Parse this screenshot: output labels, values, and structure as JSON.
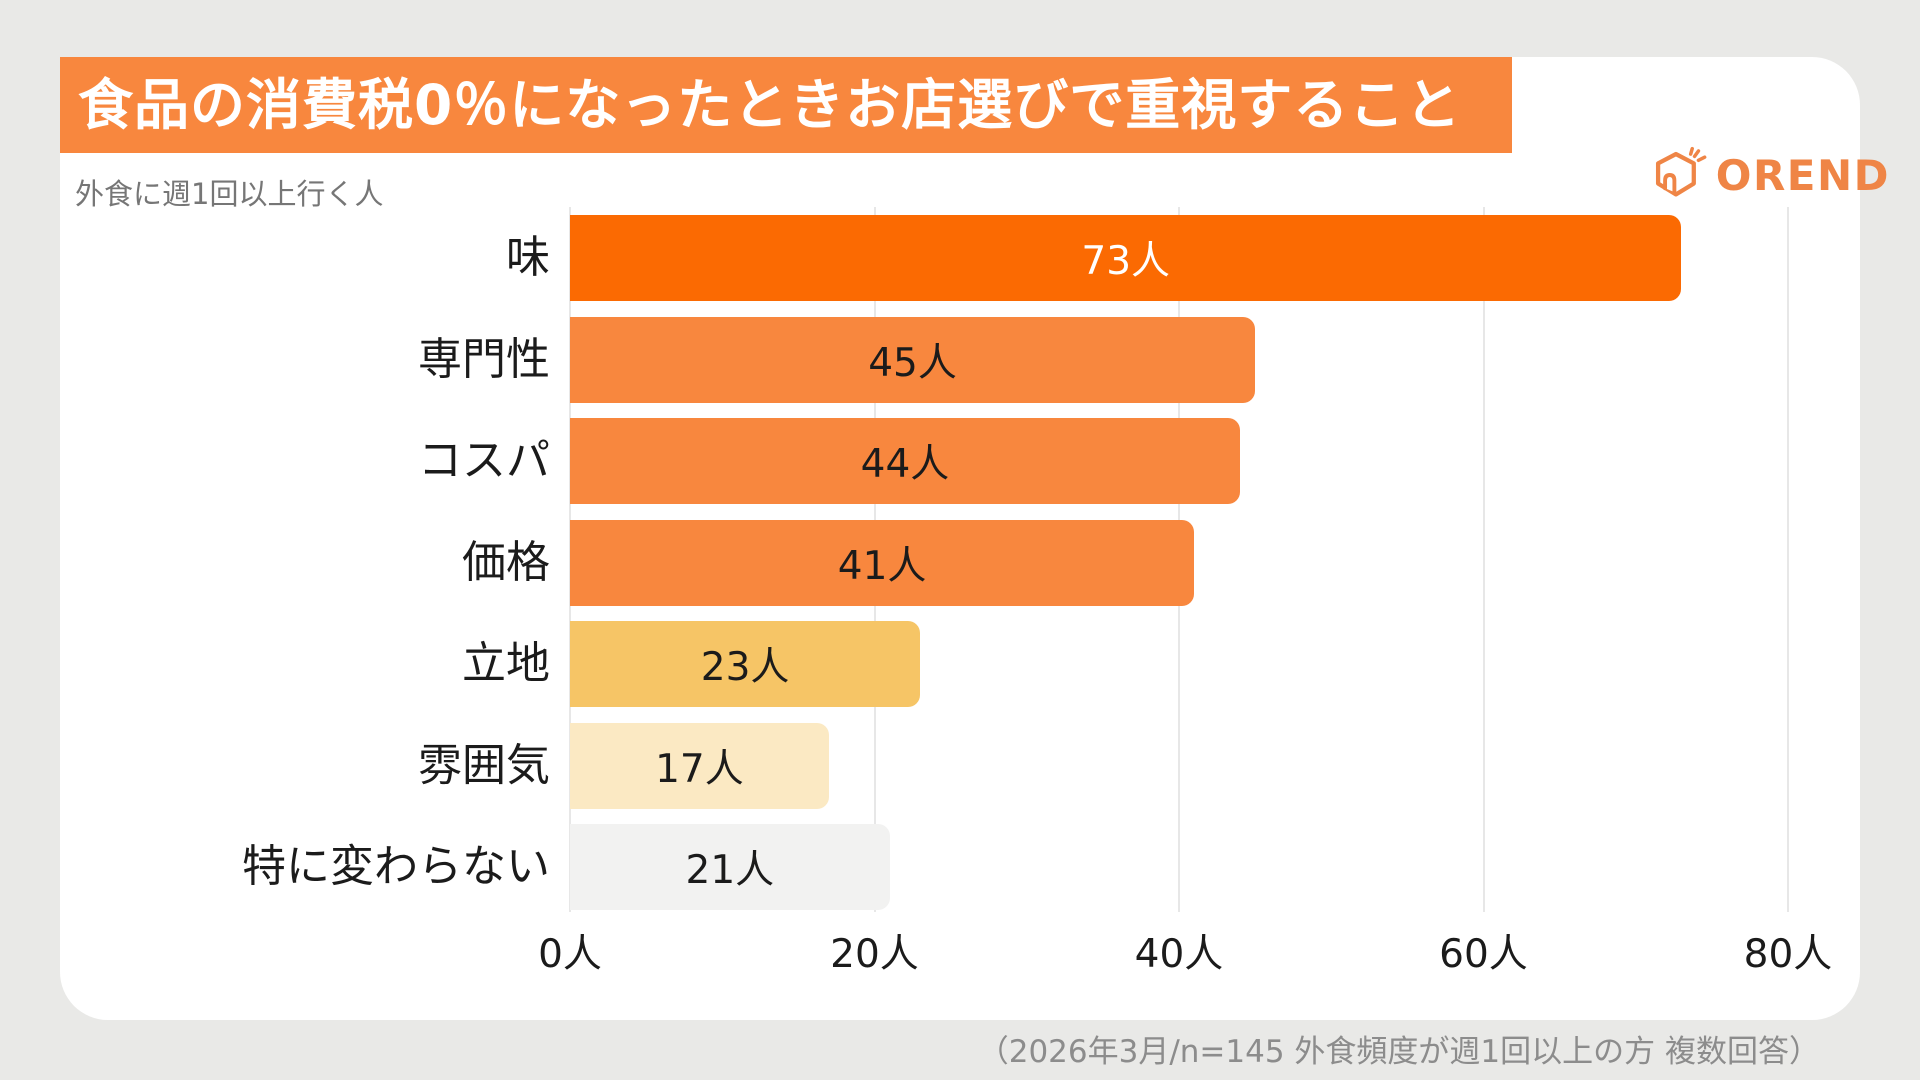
{
  "header": {
    "title": "食品の消費税0％になったときお店選びで重視すること",
    "banner_color": "#F8873E"
  },
  "logo": {
    "text": "OREND",
    "color": "#EF8546",
    "icon": "house-logo-icon"
  },
  "chart_data": {
    "type": "bar",
    "orientation": "horizontal",
    "subtitle": "外食に週1回以上行く人",
    "categories": [
      "味",
      "専門性",
      "コスパ",
      "価格",
      "立地",
      "雰囲気",
      "特に変わらない"
    ],
    "values": [
      73,
      45,
      44,
      41,
      23,
      17,
      21
    ],
    "value_labels": [
      "73人",
      "45人",
      "44人",
      "41人",
      "23人",
      "17人",
      "21人"
    ],
    "bar_colors": [
      "#FB6A02",
      "#F8873E",
      "#F8873E",
      "#F8873E",
      "#F6C566",
      "#FBE9C3",
      "#F2F2F1"
    ],
    "value_label_colors": [
      "#FFFFFF",
      "#1B1B1B",
      "#1B1B1B",
      "#1B1B1B",
      "#1B1B1B",
      "#1B1B1B",
      "#1B1B1B"
    ],
    "x_ticks": [
      "0人",
      "20人",
      "40人",
      "60人",
      "80人"
    ],
    "x_tick_values": [
      0,
      20,
      40,
      60,
      80
    ],
    "xlim": [
      0,
      80
    ],
    "grid": true,
    "legend": false
  },
  "footer": {
    "note": "（2026年3月/n=145 外食頻度が週1回以上の方 複数回答）"
  }
}
